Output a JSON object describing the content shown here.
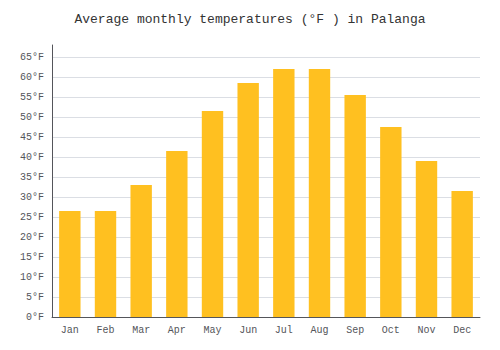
{
  "chart_data": {
    "type": "bar",
    "title": "Average monthly temperatures (°F ) in Palanga",
    "categories": [
      "Jan",
      "Feb",
      "Mar",
      "Apr",
      "May",
      "Jun",
      "Jul",
      "Aug",
      "Sep",
      "Oct",
      "Nov",
      "Dec"
    ],
    "values": [
      26.5,
      26.5,
      33.0,
      41.5,
      51.5,
      58.5,
      62.0,
      62.0,
      55.5,
      47.5,
      39.0,
      31.5
    ],
    "color": "#FFC020",
    "ylim": [
      0,
      68
    ],
    "yticks": [
      {
        "value": 0,
        "label": "0°F"
      },
      {
        "value": 5,
        "label": "5°F"
      },
      {
        "value": 10,
        "label": "10°F"
      },
      {
        "value": 15,
        "label": "15°F"
      },
      {
        "value": 20,
        "label": "20°F"
      },
      {
        "value": 25,
        "label": "25°F"
      },
      {
        "value": 30,
        "label": "30°F"
      },
      {
        "value": 35,
        "label": "35°F"
      },
      {
        "value": 40,
        "label": "40°F"
      },
      {
        "value": 45,
        "label": "45°F"
      },
      {
        "value": 50,
        "label": "50°F"
      },
      {
        "value": 55,
        "label": "55°F"
      },
      {
        "value": 60,
        "label": "60°F"
      },
      {
        "value": 65,
        "label": "65°F"
      }
    ],
    "grid": true
  }
}
